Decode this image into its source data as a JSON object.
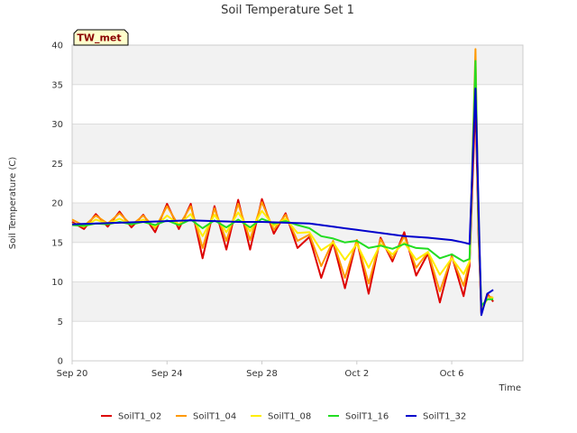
{
  "chart_data": {
    "type": "line",
    "title": "Soil Temperature Set 1",
    "xlabel": "Time",
    "ylabel": "Soil Temperature (C)",
    "site_badge": "TW_met",
    "xlim": [
      "2023-09-20",
      "2023-10-09"
    ],
    "ylim": [
      0,
      40
    ],
    "y_ticks": [
      0,
      5,
      10,
      15,
      20,
      25,
      30,
      35,
      40
    ],
    "x_ticks": [
      {
        "date": "2023-09-20",
        "label": "Sep 20"
      },
      {
        "date": "2023-09-24",
        "label": "Sep 24"
      },
      {
        "date": "2023-09-28",
        "label": "Sep 28"
      },
      {
        "date": "2023-10-02",
        "label": "Oct 2"
      },
      {
        "date": "2023-10-06",
        "label": "Oct 6"
      }
    ],
    "grid": true,
    "banded_background": true,
    "legend_position": "bottom",
    "series": [
      {
        "name": "SoilT1_02",
        "color": "#dd0000",
        "x": [
          "2023-09-20",
          "2023-09-20T12:00",
          "2023-09-21",
          "2023-09-21T12:00",
          "2023-09-22",
          "2023-09-22T12:00",
          "2023-09-23",
          "2023-09-23T12:00",
          "2023-09-24",
          "2023-09-24T12:00",
          "2023-09-25",
          "2023-09-25T12:00",
          "2023-09-26",
          "2023-09-26T12:00",
          "2023-09-27",
          "2023-09-27T12:00",
          "2023-09-28",
          "2023-09-28T12:00",
          "2023-09-29",
          "2023-09-29T12:00",
          "2023-09-30",
          "2023-09-30T12:00",
          "2023-10-01",
          "2023-10-01T12:00",
          "2023-10-02",
          "2023-10-02T12:00",
          "2023-10-03",
          "2023-10-03T12:00",
          "2023-10-04",
          "2023-10-04T12:00",
          "2023-10-05",
          "2023-10-05T12:00",
          "2023-10-06",
          "2023-10-06T12:00",
          "2023-10-06T18:00",
          "2023-10-07",
          "2023-10-07T03:00",
          "2023-10-07T06:00",
          "2023-10-07T12:00",
          "2023-10-07T18:00"
        ],
        "y": [
          17.6,
          16.7,
          18.6,
          17.0,
          18.9,
          16.9,
          18.5,
          16.3,
          19.9,
          16.7,
          19.9,
          13.0,
          19.6,
          14.1,
          20.4,
          14.1,
          20.5,
          16.1,
          18.7,
          14.3,
          15.7,
          10.5,
          15.0,
          9.2,
          15.3,
          8.5,
          15.6,
          12.6,
          16.3,
          10.8,
          13.6,
          7.4,
          13.3,
          8.2,
          12.0,
          33.0,
          16.0,
          6.0,
          8.5,
          7.5
        ]
      },
      {
        "name": "SoilT1_04",
        "color": "#ff9900",
        "x": [
          "2023-09-20",
          "2023-09-20T12:00",
          "2023-09-21",
          "2023-09-21T12:00",
          "2023-09-22",
          "2023-09-22T12:00",
          "2023-09-23",
          "2023-09-23T12:00",
          "2023-09-24",
          "2023-09-24T12:00",
          "2023-09-25",
          "2023-09-25T12:00",
          "2023-09-26",
          "2023-09-26T12:00",
          "2023-09-27",
          "2023-09-27T12:00",
          "2023-09-28",
          "2023-09-28T12:00",
          "2023-09-29",
          "2023-09-29T12:00",
          "2023-09-30",
          "2023-09-30T12:00",
          "2023-10-01",
          "2023-10-01T12:00",
          "2023-10-02",
          "2023-10-02T12:00",
          "2023-10-03",
          "2023-10-03T12:00",
          "2023-10-04",
          "2023-10-04T12:00",
          "2023-10-05",
          "2023-10-05T12:00",
          "2023-10-06",
          "2023-10-06T12:00",
          "2023-10-06T18:00",
          "2023-10-07",
          "2023-10-07T03:00",
          "2023-10-07T06:00",
          "2023-10-07T12:00",
          "2023-10-07T18:00"
        ],
        "y": [
          17.9,
          17.1,
          18.4,
          17.4,
          18.7,
          17.2,
          18.4,
          16.8,
          19.6,
          17.1,
          19.6,
          14.3,
          19.3,
          15.2,
          19.9,
          15.3,
          20.1,
          16.6,
          18.5,
          15.2,
          16.0,
          12.0,
          15.2,
          10.5,
          15.3,
          9.8,
          15.4,
          13.0,
          15.8,
          11.8,
          13.8,
          8.8,
          13.2,
          9.5,
          12.5,
          39.5,
          17.0,
          6.2,
          8.2,
          8.0
        ]
      },
      {
        "name": "SoilT1_08",
        "color": "#ffee00",
        "x": [
          "2023-09-20",
          "2023-09-20T12:00",
          "2023-09-21",
          "2023-09-21T12:00",
          "2023-09-22",
          "2023-09-22T12:00",
          "2023-09-23",
          "2023-09-23T12:00",
          "2023-09-24",
          "2023-09-24T12:00",
          "2023-09-25",
          "2023-09-25T12:00",
          "2023-09-26",
          "2023-09-26T12:00",
          "2023-09-27",
          "2023-09-27T12:00",
          "2023-09-28",
          "2023-09-28T12:00",
          "2023-09-29",
          "2023-09-29T12:00",
          "2023-09-30",
          "2023-09-30T12:00",
          "2023-10-01",
          "2023-10-01T12:00",
          "2023-10-02",
          "2023-10-02T12:00",
          "2023-10-03",
          "2023-10-03T12:00",
          "2023-10-04",
          "2023-10-04T12:00",
          "2023-10-05",
          "2023-10-05T12:00",
          "2023-10-06",
          "2023-10-06T12:00",
          "2023-10-06T18:00",
          "2023-10-07",
          "2023-10-07T03:00",
          "2023-10-07T06:00",
          "2023-10-07T12:00",
          "2023-10-07T18:00"
        ],
        "y": [
          17.4,
          17.0,
          17.9,
          17.4,
          18.0,
          17.3,
          17.9,
          17.0,
          18.4,
          17.3,
          18.6,
          15.8,
          18.5,
          16.3,
          18.8,
          16.4,
          19.0,
          17.1,
          18.0,
          16.2,
          16.3,
          14.0,
          15.0,
          12.8,
          14.8,
          11.8,
          14.8,
          13.5,
          15.0,
          12.8,
          13.8,
          10.9,
          13.0,
          11.0,
          12.6,
          36.5,
          18.0,
          6.5,
          7.8,
          8.0
        ]
      },
      {
        "name": "SoilT1_16",
        "color": "#22dd22",
        "x": [
          "2023-09-20",
          "2023-09-20T12:00",
          "2023-09-21",
          "2023-09-21T12:00",
          "2023-09-22",
          "2023-09-22T12:00",
          "2023-09-23",
          "2023-09-23T12:00",
          "2023-09-24",
          "2023-09-24T12:00",
          "2023-09-25",
          "2023-09-25T12:00",
          "2023-09-26",
          "2023-09-26T12:00",
          "2023-09-27",
          "2023-09-27T12:00",
          "2023-09-28",
          "2023-09-28T12:00",
          "2023-09-29",
          "2023-09-29T12:00",
          "2023-09-30",
          "2023-09-30T12:00",
          "2023-10-01",
          "2023-10-01T12:00",
          "2023-10-02",
          "2023-10-02T12:00",
          "2023-10-03",
          "2023-10-03T12:00",
          "2023-10-04",
          "2023-10-04T12:00",
          "2023-10-05",
          "2023-10-05T12:00",
          "2023-10-06",
          "2023-10-06T12:00",
          "2023-10-06T18:00",
          "2023-10-07",
          "2023-10-07T03:00",
          "2023-10-07T06:00",
          "2023-10-07T12:00",
          "2023-10-07T18:00"
        ],
        "y": [
          17.2,
          17.1,
          17.4,
          17.3,
          17.6,
          17.3,
          17.6,
          17.2,
          17.8,
          17.2,
          17.9,
          16.8,
          17.8,
          16.9,
          17.9,
          16.9,
          18.0,
          17.4,
          17.7,
          17.2,
          16.8,
          15.8,
          15.5,
          15.0,
          15.2,
          14.3,
          14.6,
          14.2,
          14.8,
          14.3,
          14.2,
          13.0,
          13.5,
          12.6,
          12.9,
          38.0,
          18.0,
          7.0,
          7.8,
          7.8
        ]
      },
      {
        "name": "SoilT1_32",
        "color": "#0000cc",
        "x": [
          "2023-09-20",
          "2023-09-21",
          "2023-09-22",
          "2023-09-23",
          "2023-09-24",
          "2023-09-25",
          "2023-09-26",
          "2023-09-27",
          "2023-09-28",
          "2023-09-29",
          "2023-09-30",
          "2023-10-01",
          "2023-10-02",
          "2023-10-03",
          "2023-10-04",
          "2023-10-05",
          "2023-10-06",
          "2023-10-06T12:00",
          "2023-10-06T18:00",
          "2023-10-07",
          "2023-10-07T03:00",
          "2023-10-07T06:00",
          "2023-10-07T12:00",
          "2023-10-07T18:00"
        ],
        "y": [
          17.3,
          17.4,
          17.5,
          17.6,
          17.7,
          17.8,
          17.7,
          17.6,
          17.6,
          17.5,
          17.4,
          17.0,
          16.6,
          16.2,
          15.8,
          15.6,
          15.3,
          15.0,
          14.8,
          34.5,
          20.0,
          5.8,
          8.5,
          9.0
        ]
      }
    ]
  }
}
